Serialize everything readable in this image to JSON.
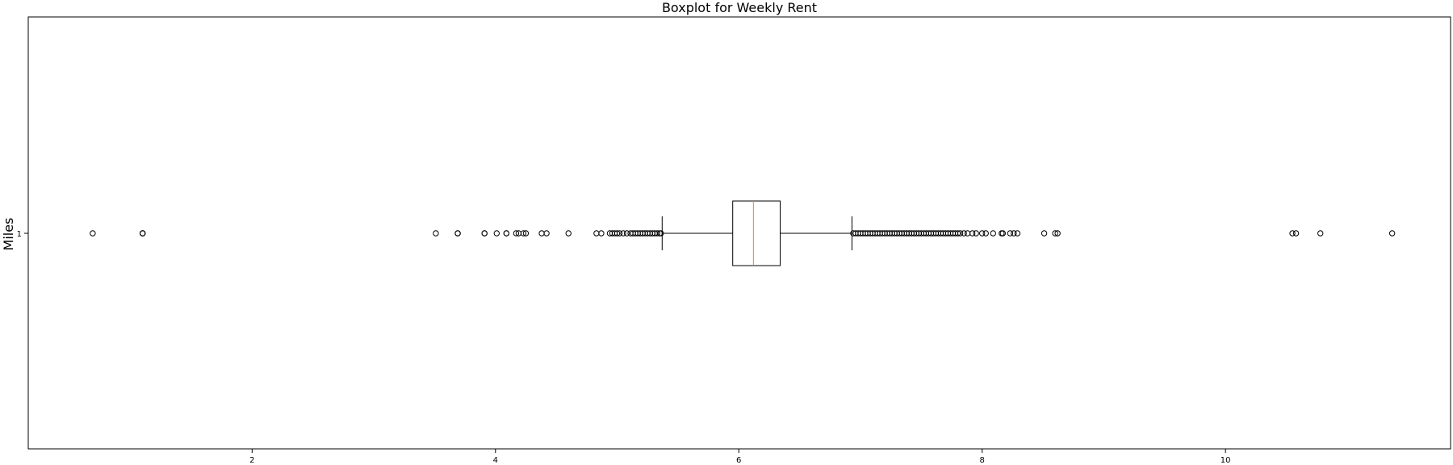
{
  "chart_data": {
    "type": "boxplot",
    "title": "Boxplot for Weekly Rent",
    "xlabel": "",
    "ylabel": "Miles",
    "orientation": "horizontal",
    "xlim": [
      0.16,
      11.85
    ],
    "x_ticks": [
      2,
      4,
      6,
      8,
      10
    ],
    "y_ticks": [
      "1"
    ],
    "grid": false,
    "box": {
      "category": "1",
      "q1": 5.95,
      "median": 6.12,
      "q3": 6.34,
      "whisker_low": 5.37,
      "whisker_high": 6.93
    },
    "outliers": [
      0.69,
      1.1,
      1.1,
      1.1,
      3.51,
      3.69,
      3.69,
      3.91,
      3.91,
      4.01,
      4.09,
      4.09,
      4.17,
      4.19,
      4.23,
      4.25,
      4.38,
      4.42,
      4.6,
      4.83,
      4.87,
      4.94,
      4.96,
      4.98,
      5.0,
      5.02,
      5.05,
      5.08,
      5.11,
      5.13,
      5.15,
      5.17,
      5.19,
      5.21,
      5.23,
      5.25,
      5.27,
      5.29,
      5.31,
      5.33,
      5.35,
      5.36,
      6.94,
      6.96,
      6.98,
      7.0,
      7.02,
      7.04,
      7.06,
      7.08,
      7.1,
      7.12,
      7.14,
      7.16,
      7.18,
      7.2,
      7.22,
      7.24,
      7.26,
      7.28,
      7.3,
      7.32,
      7.34,
      7.36,
      7.38,
      7.4,
      7.42,
      7.44,
      7.46,
      7.48,
      7.5,
      7.52,
      7.54,
      7.56,
      7.58,
      7.6,
      7.62,
      7.64,
      7.66,
      7.68,
      7.7,
      7.72,
      7.74,
      7.76,
      7.78,
      7.8,
      7.82,
      7.85,
      7.88,
      7.92,
      7.95,
      8.0,
      8.03,
      8.09,
      8.16,
      8.17,
      8.23,
      8.26,
      8.29,
      8.51,
      8.6,
      8.62,
      10.55,
      10.58,
      10.78,
      11.37
    ],
    "colors": {
      "box": "#000000",
      "median": "#ff7f0e",
      "whisker": "#000000",
      "outlier": "#000000",
      "frame": "#000000"
    }
  }
}
